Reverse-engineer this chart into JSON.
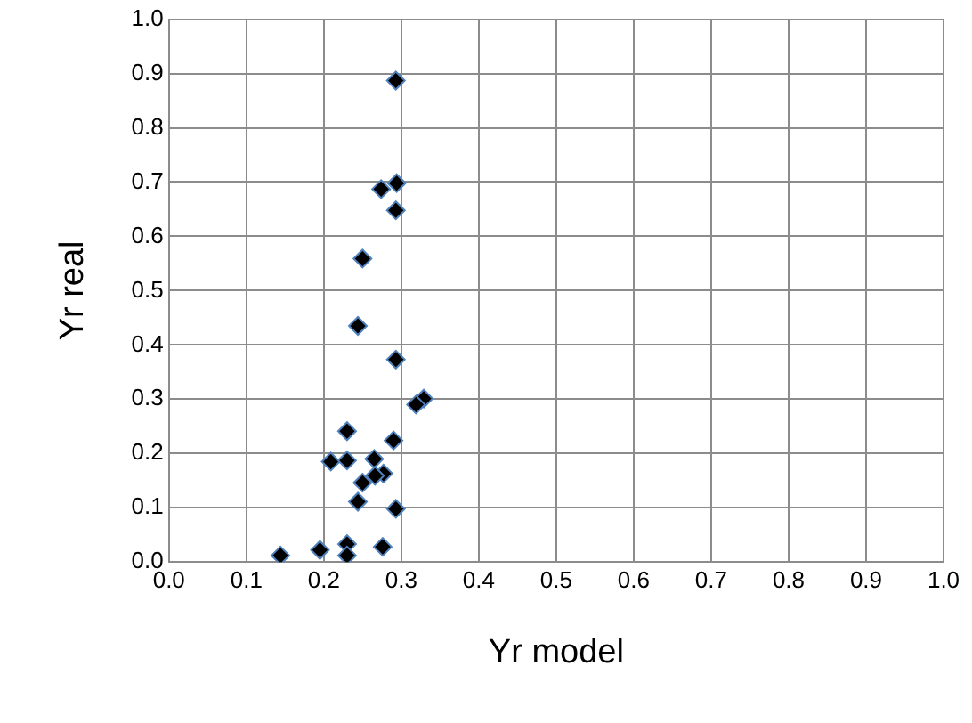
{
  "chart_data": {
    "type": "scatter",
    "xlabel": "Yr model",
    "ylabel": "Yr real",
    "x": [
      0.293,
      0.294,
      0.274,
      0.293,
      0.25,
      0.244,
      0.293,
      0.329,
      0.319,
      0.23,
      0.29,
      0.209,
      0.23,
      0.265,
      0.277,
      0.266,
      0.25,
      0.244,
      0.293,
      0.144,
      0.195,
      0.23,
      0.23,
      0.276
    ],
    "series": [
      {
        "color": "#000000",
        "values": [
          0.887,
          0.698,
          0.687,
          0.648,
          0.559,
          0.435,
          0.373,
          0.301,
          0.29,
          0.241,
          0.224,
          0.185,
          0.187,
          0.19,
          0.163,
          0.159,
          0.146,
          0.111,
          0.098,
          0.012,
          0.022,
          0.033,
          0.012,
          0.028
        ]
      }
    ],
    "xlim": [
      0,
      1
    ],
    "ylim": [
      0,
      1
    ],
    "xticks": [
      {
        "value": 0,
        "label": "0.0"
      },
      {
        "value": 0.1,
        "label": "0.1"
      },
      {
        "value": 0.2,
        "label": "0.2"
      },
      {
        "value": 0.3,
        "label": "0.3"
      },
      {
        "value": 0.4,
        "label": "0.4"
      },
      {
        "value": 0.5,
        "label": "0.5"
      },
      {
        "value": 0.6,
        "label": "0.6"
      },
      {
        "value": 0.7,
        "label": "0.7"
      },
      {
        "value": 0.8,
        "label": "0.8"
      },
      {
        "value": 0.9,
        "label": "0.9"
      },
      {
        "value": 1,
        "label": "1.0"
      }
    ],
    "yticks": [
      {
        "value": 0,
        "label": "0.0"
      },
      {
        "value": 0.1,
        "label": "0.1"
      },
      {
        "value": 0.2,
        "label": "0.2"
      },
      {
        "value": 0.3,
        "label": "0.3"
      },
      {
        "value": 0.4,
        "label": "0.4"
      },
      {
        "value": 0.5,
        "label": "0.5"
      },
      {
        "value": 0.6,
        "label": "0.6"
      },
      {
        "value": 0.7,
        "label": "0.7"
      },
      {
        "value": 0.8,
        "label": "0.8"
      },
      {
        "value": 0.9,
        "label": "0.9"
      },
      {
        "value": 1,
        "label": "1.0"
      }
    ],
    "grid": true,
    "marker": "diamond",
    "legend": false
  }
}
